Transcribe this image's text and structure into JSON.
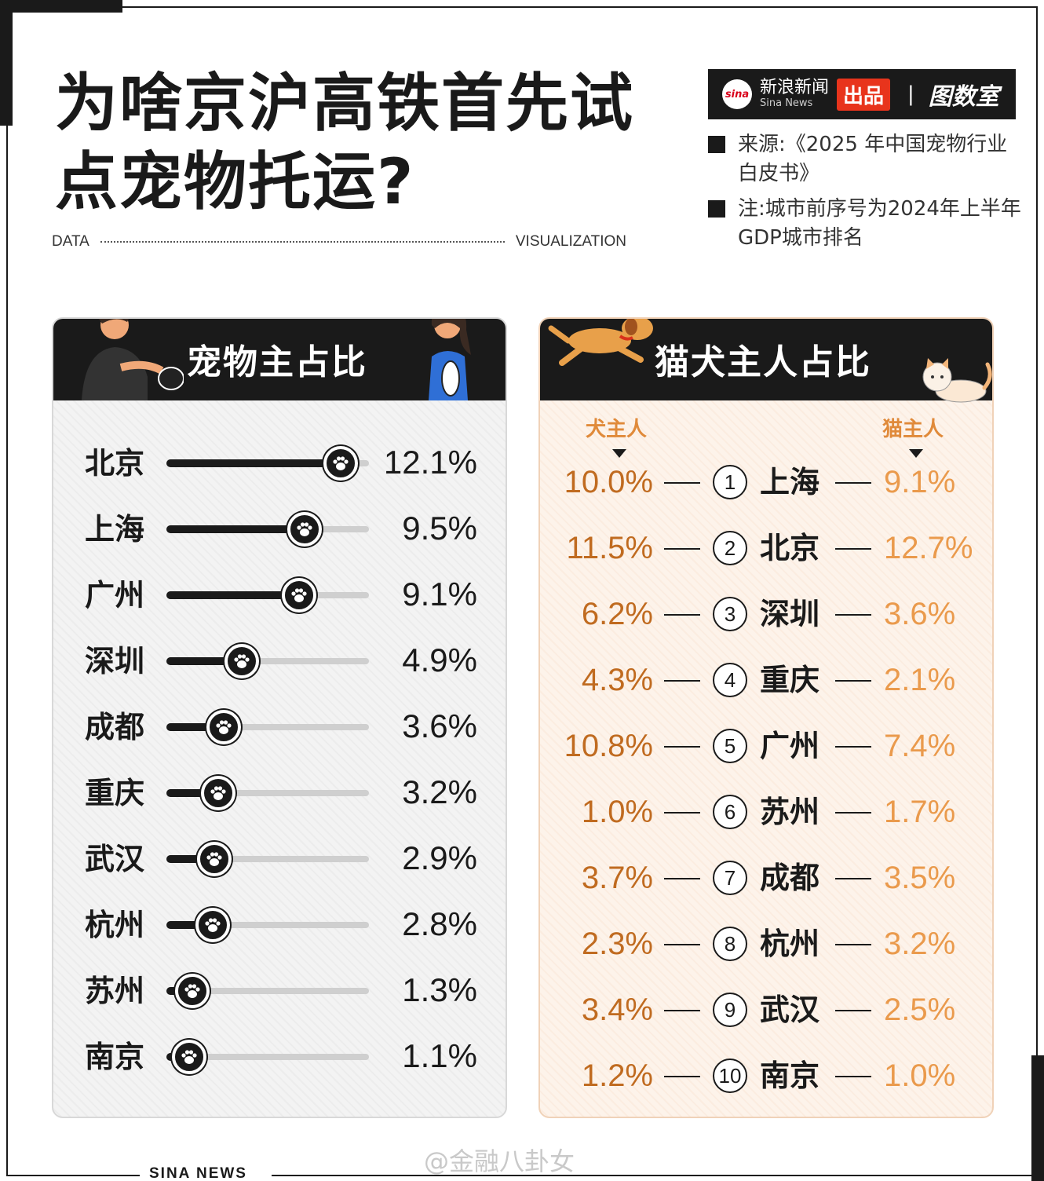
{
  "title_line1": "为啥京沪高铁首先试",
  "title_line2": "点宠物托运?",
  "data_label": "DATA",
  "viz_label": "VISUALIZATION",
  "brand": {
    "logo_text": "sina",
    "cn": "新浪新闻",
    "en": "Sina News",
    "badge": "出品",
    "separator": "|",
    "studio": "图数室"
  },
  "notes": [
    {
      "text": "来源:《2025 年中国宠物行业白皮书》"
    },
    {
      "text": "注:城市前序号为2024年上半年GDP城市排名"
    }
  ],
  "footer": {
    "brand": "SINA  NEWS",
    "handle": "@金融八卦女"
  },
  "colors": {
    "dark": "#1a1a1a",
    "dog_value": "#c06b20",
    "cat_value": "#ea9a4c",
    "cat_header": "#e08a3a"
  },
  "chart_data": [
    {
      "type": "bar",
      "title": "宠物主占比",
      "categories": [
        "北京",
        "上海",
        "广州",
        "深圳",
        "成都",
        "重庆",
        "武汉",
        "杭州",
        "苏州",
        "南京"
      ],
      "values": [
        12.1,
        9.5,
        9.1,
        4.9,
        3.6,
        3.2,
        2.9,
        2.8,
        1.3,
        1.1
      ],
      "labels": [
        "12.1%",
        "9.5%",
        "9.1%",
        "4.9%",
        "3.6%",
        "3.2%",
        "2.9%",
        "2.8%",
        "1.3%",
        "1.1%"
      ],
      "unit": "%"
    },
    {
      "type": "table",
      "title": "猫犬主人占比",
      "columns": [
        "犬主人",
        "猫主人"
      ],
      "rows": [
        {
          "rank": "1",
          "city": "上海",
          "dog": "10.0%",
          "cat": "9.1%"
        },
        {
          "rank": "2",
          "city": "北京",
          "dog": "11.5%",
          "cat": "12.7%"
        },
        {
          "rank": "3",
          "city": "深圳",
          "dog": "6.2%",
          "cat": "3.6%"
        },
        {
          "rank": "4",
          "city": "重庆",
          "dog": "4.3%",
          "cat": "2.1%"
        },
        {
          "rank": "5",
          "city": "广州",
          "dog": "10.8%",
          "cat": "7.4%"
        },
        {
          "rank": "6",
          "city": "苏州",
          "dog": "1.0%",
          "cat": "1.7%"
        },
        {
          "rank": "7",
          "city": "成都",
          "dog": "3.7%",
          "cat": "3.5%"
        },
        {
          "rank": "8",
          "city": "杭州",
          "dog": "2.3%",
          "cat": "3.2%"
        },
        {
          "rank": "9",
          "city": "武汉",
          "dog": "3.4%",
          "cat": "2.5%"
        },
        {
          "rank": "10",
          "city": "南京",
          "dog": "1.2%",
          "cat": "1.0%"
        }
      ]
    }
  ]
}
